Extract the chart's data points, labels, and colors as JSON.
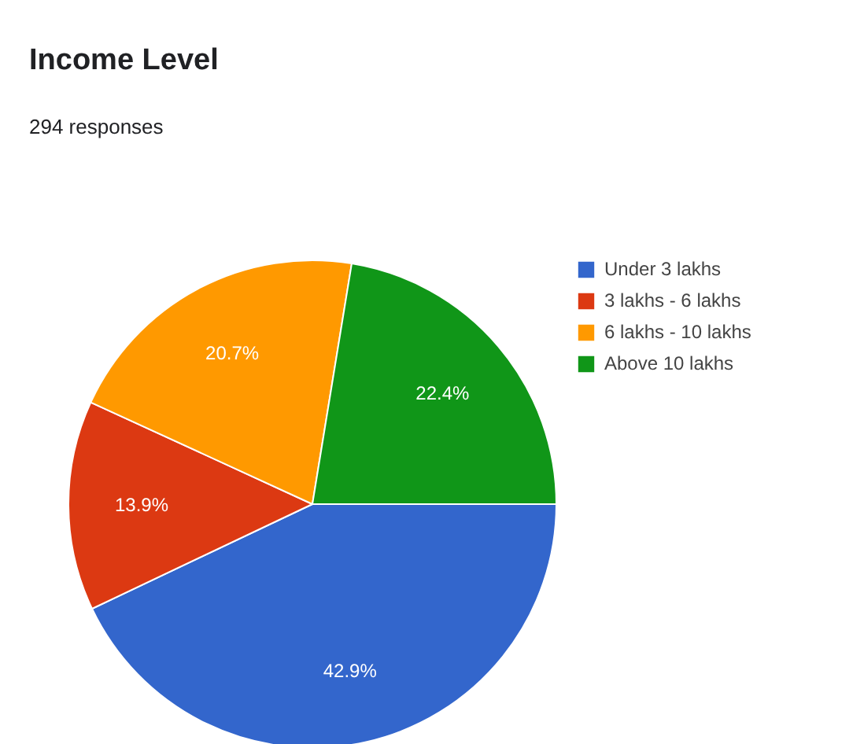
{
  "chart_data": {
    "type": "pie",
    "title": "Income Level",
    "subtitle": "294 responses",
    "categories": [
      "Under 3 lakhs",
      "3 lakhs - 6 lakhs",
      "6 lakhs - 10 lakhs",
      "Above 10 lakhs"
    ],
    "values": [
      42.9,
      13.9,
      20.7,
      22.4
    ],
    "colors": [
      "#3366cc",
      "#dc3912",
      "#ff9900",
      "#109618"
    ],
    "value_labels": [
      "42.9%",
      "13.9%",
      "20.7%",
      "22.4%"
    ],
    "legend": "right"
  }
}
